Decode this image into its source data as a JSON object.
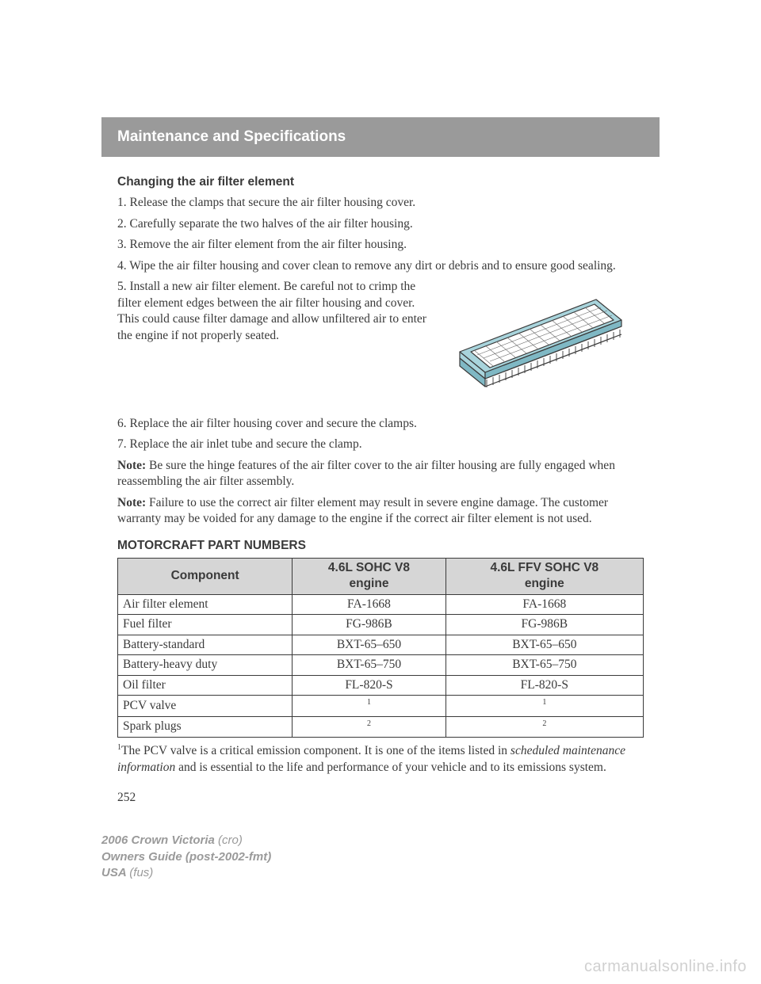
{
  "header": {
    "title": "Maintenance and Specifications"
  },
  "section1": {
    "heading": "Changing the air filter element",
    "steps": [
      "1. Release the clamps that secure the air filter housing cover.",
      "2. Carefully separate the two halves of the air filter housing.",
      "3. Remove the air filter element from the air filter housing.",
      "4. Wipe the air filter housing and cover clean to remove any dirt or debris and to ensure good sealing.",
      "5. Install a new air filter element. Be careful not to crimp the filter element edges between the air filter housing and cover. This could cause filter damage and allow unfiltered air to enter the engine if not properly seated.",
      "6. Replace the air filter housing cover and secure the clamps.",
      "7. Replace the air inlet tube and secure the clamp."
    ],
    "note1_label": "Note:",
    "note1_text": " Be sure the hinge features of the air filter cover to the air filter housing are fully engaged when reassembling the air filter assembly.",
    "note2_label": "Note:",
    "note2_text": " Failure to use the correct air filter element may result in severe engine damage. The customer warranty may be voided for any damage to the engine if the correct air filter element is not used."
  },
  "parts_table": {
    "heading": "MOTORCRAFT PART NUMBERS",
    "columns": [
      "Component",
      "4.6L SOHC V8 engine",
      "4.6L FFV SOHC V8 engine"
    ],
    "rows": [
      [
        "Air filter element",
        "FA-1668",
        "FA-1668"
      ],
      [
        "Fuel filter",
        "FG-986B",
        "FG-986B"
      ],
      [
        "Battery-standard",
        "BXT-65–650",
        "BXT-65–650"
      ],
      [
        "Battery-heavy duty",
        "BXT-65–750",
        "BXT-65–750"
      ],
      [
        "Oil filter",
        "FL-820-S",
        "FL-820-S"
      ],
      [
        "PCV valve",
        "1",
        "1"
      ],
      [
        "Spark plugs",
        "2",
        "2"
      ]
    ],
    "superscript_rows": [
      5,
      6
    ]
  },
  "footnote": {
    "sup": "1",
    "pre": "The PCV valve is a critical emission component. It is one of the items listed in ",
    "italic": "scheduled maintenance information",
    "post": " and is essential to the life and performance of your vehicle and to its emissions system."
  },
  "page_number": "252",
  "footer": {
    "line1_b": "2006 Crown Victoria ",
    "line1_i": "(cro)",
    "line2_b": "Owners Guide (post-2002-fmt)",
    "line3_b": "USA ",
    "line3_i": "(fus)"
  },
  "watermark": "carmanualsonline.info",
  "colors": {
    "header_bg": "#9a9a9a",
    "th_bg": "#d6d6d6",
    "text": "#3a3a3a",
    "footer": "#9a9a9a",
    "watermark": "#d0d0d0",
    "filter_top": "#a8d4dc",
    "filter_side": "#7fb8c4"
  }
}
